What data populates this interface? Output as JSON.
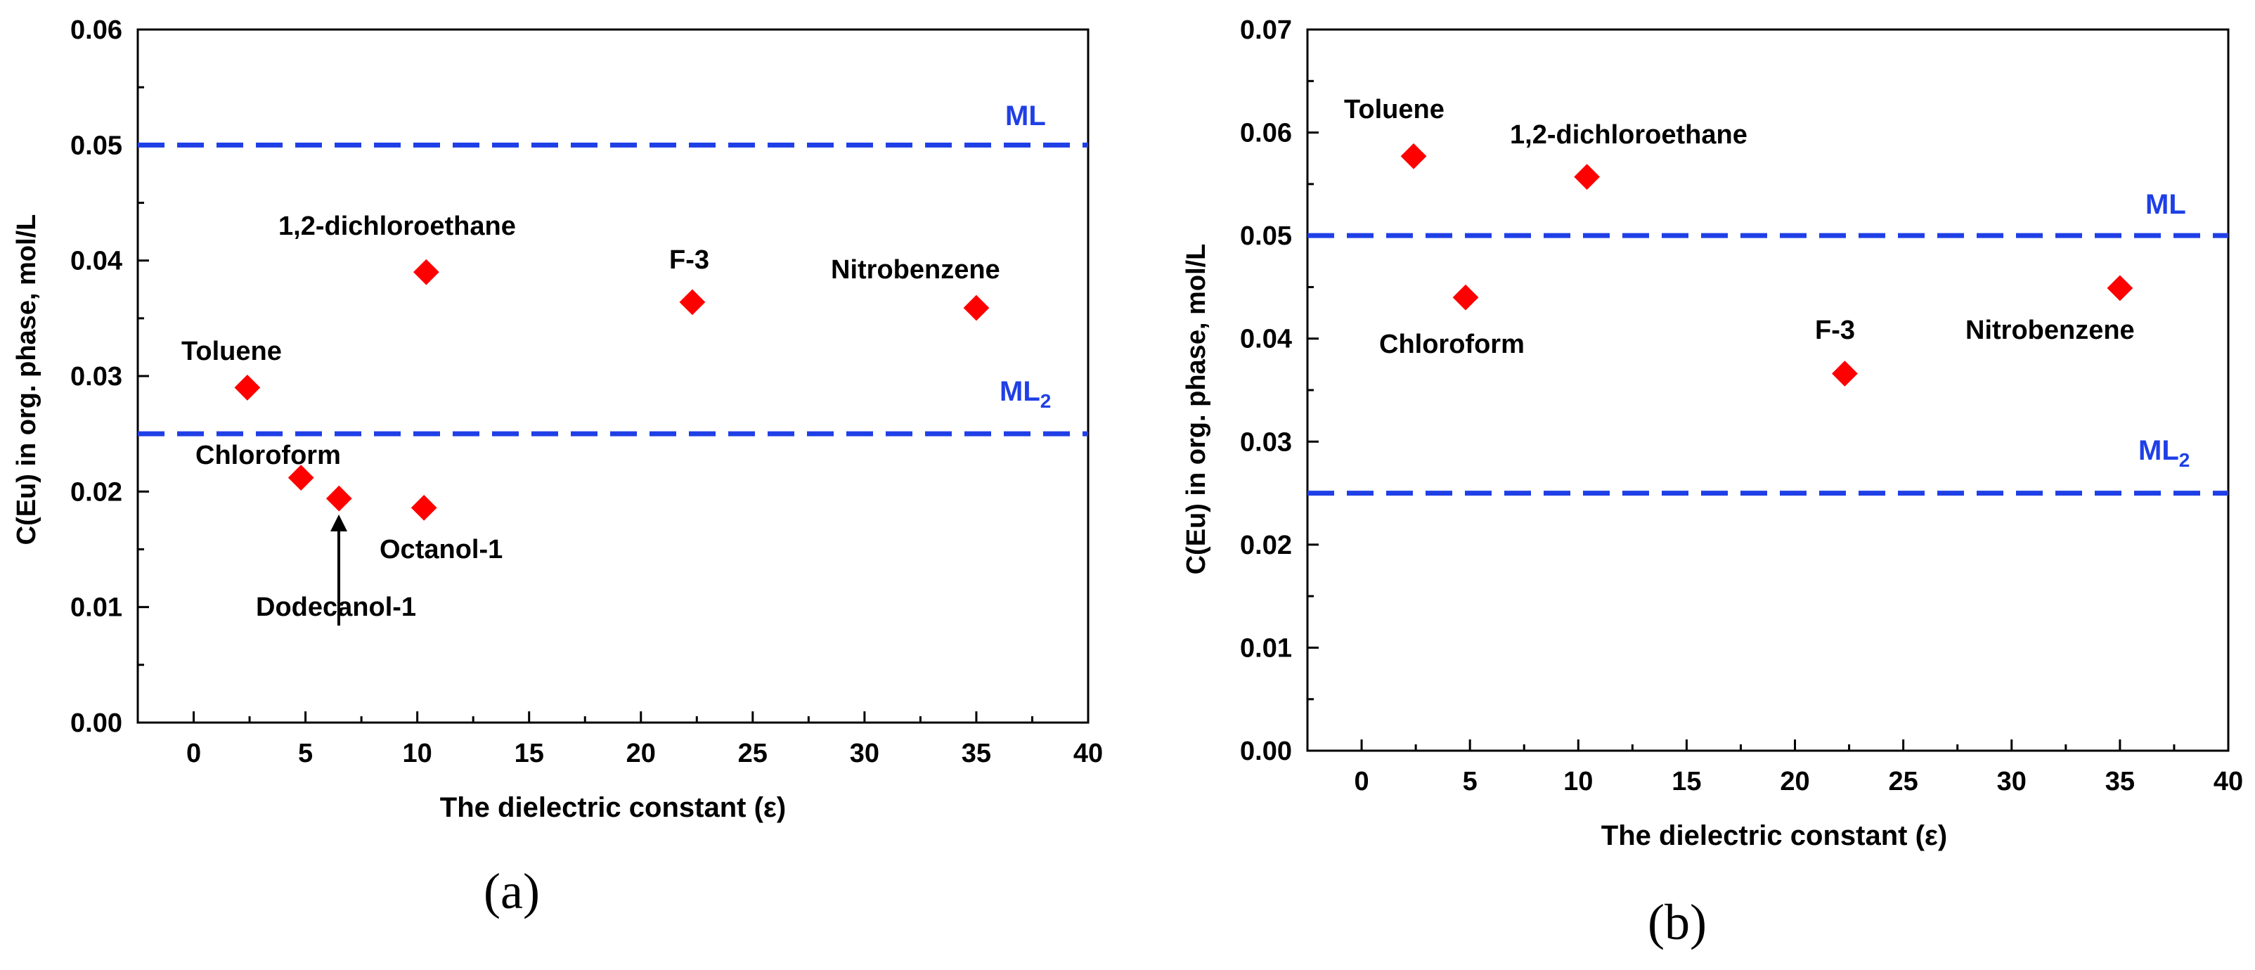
{
  "chart_data": [
    {
      "id": "a",
      "type": "scatter",
      "panel_label": "(a)",
      "xlabel": "The dielectric constant (ε)",
      "ylabel": "C(Eu) in org. phase, mol/L",
      "xlim": [
        -2.5,
        40
      ],
      "ylim": [
        0,
        0.06
      ],
      "xticks": [
        0,
        5,
        10,
        15,
        20,
        25,
        30,
        35,
        40
      ],
      "xtick_labels": [
        "0",
        "5",
        "10",
        "15",
        "20",
        "25",
        "30",
        "35",
        "40"
      ],
      "yticks": [
        0,
        0.01,
        0.02,
        0.03,
        0.04,
        0.05,
        0.06
      ],
      "ytick_labels": [
        "0.00",
        "0.01",
        "0.02",
        "0.03",
        "0.04",
        "0.05",
        "0.06"
      ],
      "marker_color": "#ff0000",
      "reference_color": "#1f3fe6",
      "reference_lines": [
        {
          "name": "ML",
          "sub": "",
          "y": 0.05
        },
        {
          "name": "ML",
          "sub": "2",
          "y": 0.025
        }
      ],
      "points": [
        {
          "name": "Toluene",
          "x": 2.4,
          "y": 0.029
        },
        {
          "name": "Chloroform",
          "x": 4.8,
          "y": 0.0212
        },
        {
          "name": "Dodecanol-1",
          "x": 6.5,
          "y": 0.0194
        },
        {
          "name": "Octanol-1",
          "x": 10.3,
          "y": 0.0186
        },
        {
          "name": "1,2-dichloroethane",
          "x": 10.4,
          "y": 0.039
        },
        {
          "name": "F-3",
          "x": 22.3,
          "y": 0.0364
        },
        {
          "name": "Nitrobenzene",
          "x": 35.0,
          "y": 0.0359
        }
      ]
    },
    {
      "id": "b",
      "type": "scatter",
      "panel_label": "(b)",
      "xlabel": "The dielectric constant (ε)",
      "ylabel": "C(Eu) in org. phase, mol/L",
      "xlim": [
        -2.5,
        40
      ],
      "ylim": [
        0,
        0.07
      ],
      "xticks": [
        0,
        5,
        10,
        15,
        20,
        25,
        30,
        35,
        40
      ],
      "xtick_labels": [
        "0",
        "5",
        "10",
        "15",
        "20",
        "25",
        "30",
        "35",
        "40"
      ],
      "yticks": [
        0,
        0.01,
        0.02,
        0.03,
        0.04,
        0.05,
        0.06,
        0.07
      ],
      "ytick_labels": [
        "0.00",
        "0.01",
        "0.02",
        "0.03",
        "0.04",
        "0.05",
        "0.06",
        "0.07"
      ],
      "marker_color": "#ff0000",
      "reference_color": "#1f3fe6",
      "reference_lines": [
        {
          "name": "ML",
          "sub": "",
          "y": 0.05
        },
        {
          "name": "ML",
          "sub": "2",
          "y": 0.025
        }
      ],
      "points": [
        {
          "name": "Toluene",
          "x": 2.4,
          "y": 0.0577
        },
        {
          "name": "Chloroform",
          "x": 4.8,
          "y": 0.044
        },
        {
          "name": "1,2-dichloroethane",
          "x": 10.4,
          "y": 0.0557
        },
        {
          "name": "F-3",
          "x": 22.3,
          "y": 0.0366
        },
        {
          "name": "Nitrobenzene",
          "x": 35.0,
          "y": 0.0449
        }
      ]
    }
  ]
}
